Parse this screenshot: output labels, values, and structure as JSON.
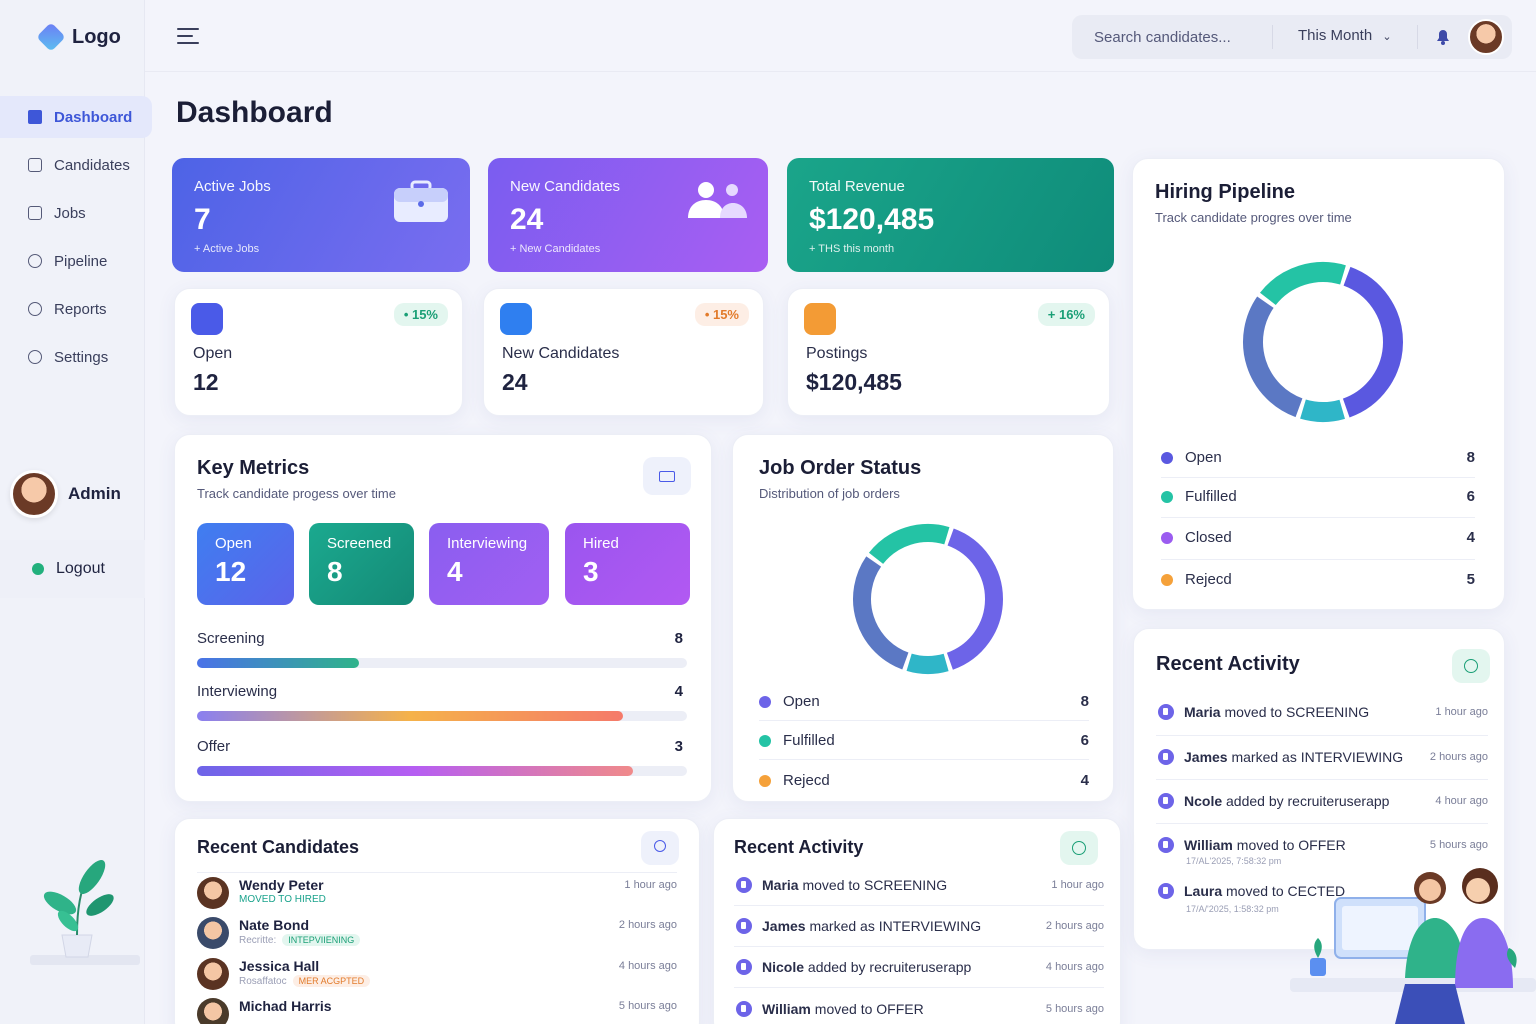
{
  "brand": {
    "logo": "Logo"
  },
  "sidebar": {
    "items": [
      {
        "label": "Dashboard",
        "icon": "dashboard-icon"
      },
      {
        "label": "Candidates",
        "icon": "candidates-icon"
      },
      {
        "label": "Jobs",
        "icon": "jobs-icon"
      },
      {
        "label": "Pipeline",
        "icon": "pipeline-icon"
      },
      {
        "label": "Reports",
        "icon": "reports-icon"
      },
      {
        "label": "Settings",
        "icon": "settings-icon"
      }
    ],
    "user": "Admin",
    "logout": "Logout"
  },
  "topbar": {
    "search_placeholder": "Search candidates...",
    "period": "This Month"
  },
  "page": {
    "title": "Dashboard"
  },
  "hero_cards": [
    {
      "title": "Active Jobs",
      "value": "7",
      "sub": "+ Active Jobs"
    },
    {
      "title": "New Candidates",
      "value": "24",
      "sub": "+ New Candidates"
    },
    {
      "title": "Total Revenue",
      "value": "$120,485",
      "sub": "+ THS this month"
    }
  ],
  "stat_cards": [
    {
      "label": "Open",
      "value": "12",
      "change": "• 15%"
    },
    {
      "label": "New Candidates",
      "value": "24",
      "change": "• 15%"
    },
    {
      "label": "Postings",
      "value": "$120,485",
      "change": "+ 16%"
    }
  ],
  "key_metrics": {
    "title": "Key Metrics",
    "subtitle": "Track candidate progess over time",
    "tiles": [
      {
        "label": "Open",
        "value": "12"
      },
      {
        "label": "Screened",
        "value": "8"
      },
      {
        "label": "Interviewing",
        "value": "4"
      },
      {
        "label": "Hired",
        "value": "3"
      }
    ],
    "progress": [
      {
        "label": "Screening",
        "value": 8,
        "fraction": 0.33
      },
      {
        "label": "Interviewing",
        "value": 4,
        "fraction": 0.87
      },
      {
        "label": "Offer",
        "value": 3,
        "fraction": 0.89
      }
    ]
  },
  "job_status": {
    "title": "Job Order Status",
    "subtitle": "Distribution of job orders",
    "legend": [
      {
        "label": "Open",
        "value": 8,
        "color": "#6d64e8"
      },
      {
        "label": "Fulfilled",
        "value": 6,
        "color": "#24c3a5"
      },
      {
        "label": "Rejecd",
        "value": 4,
        "color": "#f5a13a"
      }
    ]
  },
  "hiring_pipeline": {
    "title": "Hiring Pipeline",
    "subtitle": "Track candidate progres over time",
    "legend": [
      {
        "label": "Open",
        "value": 8,
        "color": "#5a58e0"
      },
      {
        "label": "Fulfilled",
        "value": 6,
        "color": "#24c3a5"
      },
      {
        "label": "Closed",
        "value": 4,
        "color": "#9b5cf0"
      },
      {
        "label": "Rejecd",
        "value": 5,
        "color": "#f5a13a"
      }
    ]
  },
  "recent_candidates": {
    "title": "Recent Candidates",
    "items": [
      {
        "name": "Wendy Peter",
        "status": "MOVED TO HIRED",
        "tag": "",
        "time": "1 hour ago"
      },
      {
        "name": "Nate Bond",
        "status": "Recritte:",
        "tag": "INTEPVIIENING",
        "time": "2 hours ago"
      },
      {
        "name": "Jessica Hall",
        "status": "Rosaffatoc",
        "tag": "MER ACGPTED",
        "time": "4 hours ago"
      },
      {
        "name": "Michad Harris",
        "status": "",
        "tag": "",
        "time": "5 hours ago"
      }
    ]
  },
  "recent_activity_mid": {
    "title": "Recent Activity",
    "items": [
      {
        "who": "Maria",
        "text": "moved to SCREENING",
        "time": "1 hour ago"
      },
      {
        "who": "James",
        "text": "marked as INTERVIEWING",
        "time": "2 hours ago"
      },
      {
        "who": "Nicole",
        "text": "added by recruiteruserapp",
        "time": "4 hours ago"
      },
      {
        "who": "William",
        "text": "moved to OFFER",
        "time": "5 hours ago"
      }
    ]
  },
  "recent_activity_right": {
    "title": "Recent Activity",
    "items": [
      {
        "who": "Maria",
        "text": "moved to SCREENING",
        "time": "1 hour ago",
        "sub": ""
      },
      {
        "who": "James",
        "text": "marked as INTERVIEWING",
        "time": "2 hours ago",
        "sub": ""
      },
      {
        "who": "Ncole",
        "text": "added by recruiteruserapp",
        "time": "4 hour ago",
        "sub": ""
      },
      {
        "who": "William",
        "text": "moved to OFFER",
        "time": "5 hours ago",
        "sub": "17/AL'2025, 7:58:32 pm"
      },
      {
        "who": "Laura",
        "text": "moved to CECTED",
        "time": "",
        "sub": "17/A/'2025, 1:58:32 pm"
      }
    ]
  }
}
